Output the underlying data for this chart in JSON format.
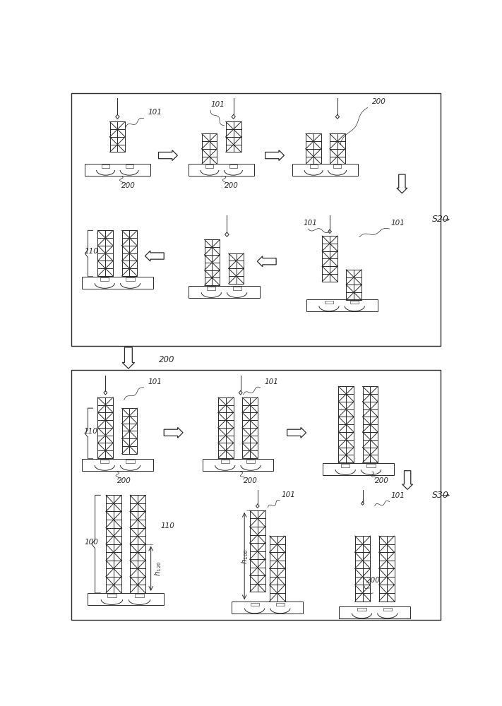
{
  "fig_width": 7.11,
  "fig_height": 10.0,
  "dpi": 100,
  "bg_color": "#ffffff",
  "lc": "#2a2a2a",
  "lw": 0.7,
  "s20_label": "S20",
  "s30_label": "S30"
}
